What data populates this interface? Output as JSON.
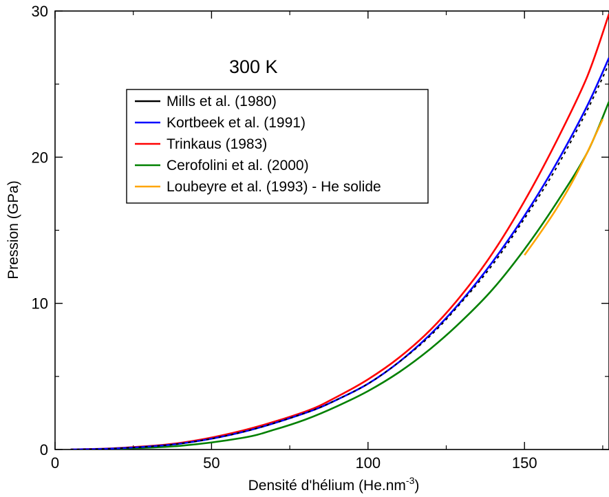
{
  "chart_data": {
    "type": "line",
    "title": "",
    "annotation": "300 K",
    "xlabel": "Densité d'hélium (He.nm",
    "xlabel_sup": "-3",
    "xlabel_close": ")",
    "ylabel": "Pression (GPa)",
    "xlim": [
      0,
      177
    ],
    "ylim": [
      0,
      30
    ],
    "xticks": [
      0,
      50,
      100,
      150
    ],
    "yticks": [
      0,
      10,
      20,
      30
    ],
    "grid": false,
    "legend_position": "upper-left",
    "series": [
      {
        "name": "Mills et al. (1980)",
        "color": "#000000",
        "dashed": true,
        "x": [
          5,
          20,
          40,
          60,
          80,
          90,
          100,
          110,
          120,
          130,
          140,
          150,
          160,
          170,
          177
        ],
        "y": [
          0,
          0.08,
          0.4,
          1.2,
          2.5,
          3.4,
          4.5,
          6.0,
          7.8,
          10.1,
          12.7,
          15.8,
          19.2,
          23.2,
          26.4
        ]
      },
      {
        "name": "Kortbeek et al. (1991)",
        "color": "#0000ff",
        "dashed": false,
        "x": [
          5,
          20,
          40,
          60,
          80,
          90,
          100,
          110,
          120,
          130,
          140,
          150,
          160,
          170,
          177
        ],
        "y": [
          0,
          0.08,
          0.4,
          1.2,
          2.5,
          3.4,
          4.5,
          6.0,
          7.9,
          10.2,
          12.9,
          16.0,
          19.5,
          23.5,
          26.8
        ]
      },
      {
        "name": "Trinkaus (1983)",
        "color": "#ff0000",
        "dashed": false,
        "x": [
          5,
          20,
          40,
          60,
          80,
          90,
          100,
          110,
          120,
          130,
          140,
          150,
          160,
          170,
          177
        ],
        "y": [
          0,
          0.1,
          0.45,
          1.3,
          2.6,
          3.6,
          4.8,
          6.3,
          8.2,
          10.6,
          13.5,
          17.0,
          21.0,
          25.5,
          29.8
        ]
      },
      {
        "name": "Cerofolini et al. (2000)",
        "color": "#008000",
        "dashed": false,
        "x": [
          5,
          20,
          40,
          60,
          70,
          80,
          90,
          100,
          110,
          120,
          130,
          140,
          150,
          160,
          170,
          177
        ],
        "y": [
          0,
          0.05,
          0.25,
          0.8,
          1.35,
          2.05,
          2.95,
          4.0,
          5.3,
          6.9,
          8.8,
          11.0,
          13.7,
          16.8,
          20.3,
          23.8
        ]
      },
      {
        "name": "Loubeyre et al. (1993) - He solide",
        "color": "#ffa500",
        "dashed": false,
        "x": [
          150,
          155,
          160,
          165,
          170,
          175
        ],
        "y": [
          13.3,
          14.8,
          16.4,
          18.2,
          20.3,
          22.6
        ]
      }
    ]
  }
}
